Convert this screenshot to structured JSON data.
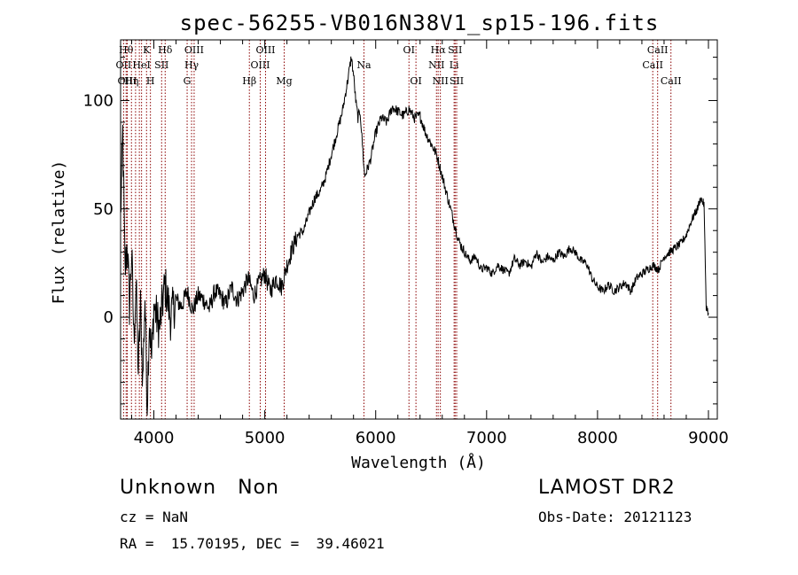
{
  "chart_data": {
    "type": "line",
    "title": "spec-56255-VB016N38V1_sp15-196.fits",
    "xlabel": "Wavelength (Å)",
    "ylabel": "Flux (relative)",
    "xlim": [
      3700,
      9080
    ],
    "ylim": [
      -47,
      128
    ],
    "xticks": [
      4000,
      5000,
      6000,
      7000,
      8000,
      9000
    ],
    "xtick_labels": [
      "4000",
      "5000",
      "6000",
      "7000",
      "8000",
      "9000"
    ],
    "yticks": [
      0,
      50,
      100
    ],
    "ytick_labels": [
      "0",
      "50",
      "100"
    ],
    "grid": false,
    "line_color": "#000000",
    "marker_color": "#8b0000",
    "series": [
      {
        "x": [
          3700,
          3720,
          3740,
          3760,
          3780,
          3800,
          3820,
          3840,
          3860,
          3880,
          3900,
          3920,
          3940,
          3960,
          3980,
          4000,
          4050,
          4100,
          4150,
          4200,
          4250,
          4300,
          4350,
          4400,
          4450,
          4500,
          4550,
          4600,
          4650,
          4700,
          4750,
          4800,
          4850,
          4900,
          4950,
          5000,
          5050,
          5100,
          5150,
          5200,
          5250,
          5300,
          5350,
          5400,
          5450,
          5500,
          5550,
          5600,
          5650,
          5700,
          5750,
          5780,
          5800,
          5820,
          5840,
          5860,
          5880,
          5900,
          5950,
          6000,
          6050,
          6100,
          6150,
          6200,
          6250,
          6300,
          6350,
          6400,
          6450,
          6500,
          6550,
          6600,
          6650,
          6700,
          6750,
          6800,
          6850,
          6900,
          6950,
          7000,
          7050,
          7100,
          7150,
          7200,
          7250,
          7300,
          7350,
          7400,
          7450,
          7500,
          7550,
          7600,
          7650,
          7700,
          7750,
          7800,
          7850,
          7900,
          7950,
          8000,
          8050,
          8100,
          8150,
          8200,
          8250,
          8300,
          8350,
          8400,
          8450,
          8500,
          8550,
          8600,
          8650,
          8700,
          8750,
          8800,
          8850,
          8900,
          8930,
          8960,
          8980,
          9000
        ],
        "y": [
          45,
          85,
          20,
          35,
          5,
          30,
          -10,
          15,
          -25,
          5,
          -30,
          10,
          -40,
          0,
          -20,
          5,
          -5,
          15,
          0,
          8,
          5,
          12,
          3,
          10,
          8,
          4,
          12,
          10,
          6,
          14,
          8,
          12,
          18,
          10,
          16,
          20,
          12,
          18,
          14,
          24,
          32,
          38,
          40,
          48,
          55,
          58,
          65,
          75,
          85,
          95,
          110,
          120,
          112,
          100,
          92,
          95,
          80,
          65,
          72,
          85,
          92,
          90,
          97,
          95,
          93,
          96,
          92,
          93,
          85,
          80,
          75,
          65,
          55,
          45,
          35,
          30,
          26,
          28,
          22,
          23,
          20,
          24,
          22,
          20,
          27,
          24,
          26,
          23,
          30,
          25,
          28,
          26,
          30,
          28,
          32,
          30,
          26,
          25,
          18,
          14,
          12,
          15,
          12,
          14,
          16,
          12,
          18,
          20,
          22,
          24,
          22,
          28,
          30,
          32,
          34,
          38,
          45,
          50,
          55,
          52,
          5,
          2
        ]
      }
    ],
    "lines": [
      {
        "x": 3727,
        "label": "OII",
        "row": 1
      },
      {
        "x": 3750,
        "label": "Hθ",
        "row": 0
      },
      {
        "x": 3760,
        "label": "OIII",
        "row": 2
      },
      {
        "x": 3798,
        "label": "Hη",
        "row": 2
      },
      {
        "x": 3835,
        "label": "",
        "row": -1
      },
      {
        "x": 3869,
        "label": "",
        "row": -1
      },
      {
        "x": 3889,
        "label": "HeI",
        "row": 1
      },
      {
        "x": 3934,
        "label": "K",
        "row": 0
      },
      {
        "x": 3969,
        "label": "H",
        "row": 2
      },
      {
        "x": 4070,
        "label": "SII",
        "row": 1
      },
      {
        "x": 4102,
        "label": "Hδ",
        "row": 0
      },
      {
        "x": 4300,
        "label": "G",
        "row": 2
      },
      {
        "x": 4340,
        "label": "Hγ",
        "row": 1
      },
      {
        "x": 4363,
        "label": "OIII",
        "row": 0
      },
      {
        "x": 4861,
        "label": "Hβ",
        "row": 2
      },
      {
        "x": 4959,
        "label": "OIII",
        "row": 1
      },
      {
        "x": 5007,
        "label": "OIII",
        "row": 0
      },
      {
        "x": 5175,
        "label": "Mg",
        "row": 2
      },
      {
        "x": 5894,
        "label": "Na",
        "row": 1
      },
      {
        "x": 6300,
        "label": "OI",
        "row": 0
      },
      {
        "x": 6363,
        "label": "OI",
        "row": 2
      },
      {
        "x": 6548,
        "label": "NII",
        "row": 1
      },
      {
        "x": 6563,
        "label": "Hα",
        "row": 0
      },
      {
        "x": 6583,
        "label": "NII",
        "row": 2
      },
      {
        "x": 6707,
        "label": "Li",
        "row": 1
      },
      {
        "x": 6716,
        "label": "SII",
        "row": 0
      },
      {
        "x": 6730,
        "label": "SII",
        "row": 2
      },
      {
        "x": 8498,
        "label": "CaII",
        "row": 1
      },
      {
        "x": 8542,
        "label": "CaII",
        "row": 0
      },
      {
        "x": 8662,
        "label": "CaII",
        "row": 2
      }
    ]
  },
  "info": {
    "class_text": "Unknown   Non",
    "survey": "LAMOST DR2",
    "cz": "cz = NaN",
    "obs_date": "Obs-Date: 20121123",
    "coords": "RA =  15.70195, DEC =  39.46021"
  }
}
